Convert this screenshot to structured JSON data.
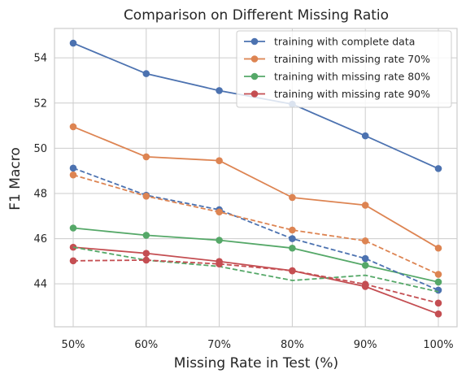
{
  "chart_data": {
    "type": "line",
    "title": "Comparison on Different Missing Ratio",
    "xlabel": "Missing Rate in Test (%)",
    "ylabel": "F1 Macro",
    "categories": [
      "50%",
      "60%",
      "70%",
      "80%",
      "90%",
      "100%"
    ],
    "ylim": [
      42.1,
      55.3
    ],
    "yticks": [
      44,
      46,
      48,
      50,
      52,
      54
    ],
    "grid": true,
    "legend_position": "top-right",
    "series": [
      {
        "name": "training with complete data",
        "color": "#4c72b0",
        "style": "solid",
        "marker": true,
        "values": [
          54.65,
          53.3,
          52.55,
          51.95,
          50.55,
          49.1
        ]
      },
      {
        "name": "training with missing rate 70%",
        "color": "#dd8452",
        "style": "solid",
        "marker": true,
        "values": [
          50.95,
          49.62,
          49.45,
          47.82,
          47.48,
          45.58
        ]
      },
      {
        "name": "training with missing rate 80%",
        "color": "#55a868",
        "style": "solid",
        "marker": true,
        "values": [
          46.47,
          46.15,
          45.93,
          45.58,
          44.82,
          44.08
        ]
      },
      {
        "name": "training with missing rate 90%",
        "color": "#c44e52",
        "style": "solid",
        "marker": true,
        "values": [
          45.62,
          45.35,
          44.99,
          44.58,
          43.88,
          42.67
        ]
      },
      {
        "name": "",
        "color": "#4c72b0",
        "style": "dashed",
        "marker": true,
        "values": [
          49.12,
          47.92,
          47.28,
          46.0,
          45.12,
          43.72
        ]
      },
      {
        "name": "",
        "color": "#dd8452",
        "style": "dashed",
        "marker": true,
        "values": [
          48.82,
          47.88,
          47.18,
          46.38,
          45.9,
          44.42
        ]
      },
      {
        "name": "",
        "color": "#55a868",
        "style": "dashed",
        "marker": false,
        "values": [
          45.62,
          45.05,
          44.77,
          44.15,
          44.38,
          43.65
        ]
      },
      {
        "name": "",
        "color": "#c44e52",
        "style": "dashed",
        "marker": true,
        "values": [
          45.02,
          45.05,
          44.88,
          44.58,
          43.98,
          43.15
        ]
      }
    ]
  }
}
